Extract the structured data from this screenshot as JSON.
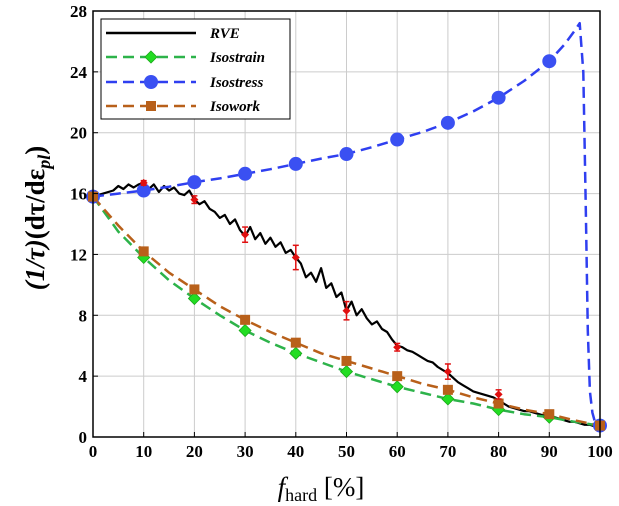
{
  "chart_data": {
    "type": "line",
    "xlabel_main": "f",
    "xlabel_sub": "hard",
    "xlabel_unit": " [%]",
    "ylabel_a": "(1/τ)",
    "ylabel_b": "(dτ/dε",
    "ylabel_sub": "pl",
    "ylabel_c": ")",
    "xlim": [
      0,
      100
    ],
    "ylim": [
      0,
      28
    ],
    "xticks": [
      0,
      10,
      20,
      30,
      40,
      50,
      60,
      70,
      80,
      90,
      100
    ],
    "yticks": [
      0,
      4,
      8,
      12,
      16,
      20,
      24,
      28
    ],
    "grid": true,
    "legend_position": "top-left",
    "series": [
      {
        "name": "RVE",
        "color": "#000000",
        "style": "solid",
        "marker": "none",
        "x": [
          0,
          2,
          4,
          5,
          6,
          7,
          8,
          9,
          10,
          11,
          12,
          13,
          14,
          15,
          16,
          17,
          18,
          19,
          20,
          21,
          22,
          23,
          24,
          25,
          26,
          27,
          28,
          29,
          30,
          31,
          32,
          33,
          34,
          35,
          36,
          37,
          38,
          39,
          40,
          41,
          42,
          43,
          44,
          45,
          46,
          47,
          48,
          49,
          50,
          51,
          52,
          53,
          54,
          55,
          56,
          57,
          58,
          59,
          60,
          61,
          62,
          63,
          64,
          65,
          66,
          67,
          68,
          69,
          70,
          71,
          72,
          73,
          74,
          75,
          76,
          77,
          78,
          79,
          80,
          81,
          82,
          83,
          84,
          85,
          86,
          87,
          88,
          89,
          90,
          91,
          92,
          93,
          94,
          95,
          96,
          97,
          98,
          99,
          100
        ],
        "y": [
          15.8,
          16.0,
          16.2,
          16.5,
          16.3,
          16.6,
          16.4,
          16.6,
          16.7,
          16.3,
          16.6,
          16.1,
          16.5,
          16.2,
          16.4,
          16.0,
          15.9,
          16.2,
          15.6,
          15.3,
          15.5,
          15.0,
          14.8,
          14.4,
          14.6,
          14.0,
          14.3,
          13.6,
          13.2,
          13.8,
          13.0,
          13.4,
          12.7,
          13.1,
          12.5,
          12.8,
          12.1,
          12.3,
          11.8,
          11.4,
          10.5,
          10.8,
          10.2,
          11.1,
          9.8,
          10.1,
          9.2,
          9.5,
          8.3,
          8.9,
          8.0,
          8.4,
          7.8,
          7.4,
          7.6,
          7.1,
          6.9,
          6.4,
          6.0,
          5.9,
          5.7,
          5.6,
          5.4,
          5.2,
          5.0,
          4.9,
          4.6,
          4.4,
          4.2,
          3.9,
          3.6,
          3.4,
          3.2,
          3.0,
          2.9,
          2.8,
          2.7,
          2.6,
          2.4,
          2.2,
          2.0,
          1.9,
          1.8,
          1.7,
          1.7,
          1.6,
          1.5,
          1.4,
          1.4,
          1.3,
          1.2,
          1.1,
          1.0,
          1.0,
          0.9,
          0.8,
          0.8,
          0.7,
          0.7
        ]
      },
      {
        "name": "Isostrain",
        "color": "#2db34a",
        "marker_color": "#22dd22",
        "style": "dashed",
        "marker": "diamond",
        "x": [
          0,
          5,
          10,
          15,
          20,
          25,
          30,
          35,
          40,
          45,
          50,
          55,
          60,
          65,
          70,
          75,
          80,
          85,
          90,
          95,
          100
        ],
        "y": [
          15.8,
          13.5,
          11.8,
          10.3,
          9.1,
          8.0,
          7.0,
          6.2,
          5.5,
          4.9,
          4.3,
          3.8,
          3.3,
          2.9,
          2.5,
          2.2,
          1.8,
          1.5,
          1.3,
          1.0,
          0.75
        ],
        "marker_x": [
          0,
          10,
          20,
          30,
          40,
          50,
          60,
          70,
          80,
          90,
          100
        ],
        "marker_y": [
          15.8,
          11.8,
          9.1,
          7.0,
          5.5,
          4.3,
          3.3,
          2.5,
          1.8,
          1.3,
          0.75
        ]
      },
      {
        "name": "Isostress",
        "color": "#2f3ff0",
        "marker_color": "#3a50f2",
        "style": "dashed",
        "marker": "circle",
        "x": [
          0,
          5,
          10,
          15,
          20,
          25,
          30,
          35,
          40,
          45,
          50,
          55,
          60,
          65,
          70,
          75,
          80,
          85,
          90,
          93,
          95,
          96,
          96.7,
          97.2,
          97.6,
          98,
          98.5,
          99,
          100
        ],
        "y": [
          15.8,
          16.0,
          16.2,
          16.45,
          16.75,
          17.0,
          17.3,
          17.6,
          17.95,
          18.3,
          18.6,
          19.05,
          19.55,
          20.05,
          20.65,
          21.4,
          22.3,
          23.4,
          24.7,
          25.8,
          26.7,
          27.2,
          24.0,
          15.0,
          7.0,
          3.0,
          1.6,
          1.0,
          0.75
        ],
        "marker_x": [
          0,
          10,
          20,
          30,
          40,
          50,
          60,
          70,
          80,
          90,
          100
        ],
        "marker_y": [
          15.8,
          16.2,
          16.75,
          17.3,
          17.95,
          18.6,
          19.55,
          20.65,
          22.3,
          24.7,
          0.75
        ]
      },
      {
        "name": "Isowork",
        "color": "#b8601a",
        "marker_color": "#b8601a",
        "style": "dashed",
        "marker": "square",
        "x": [
          0,
          5,
          10,
          15,
          20,
          25,
          30,
          35,
          40,
          45,
          50,
          55,
          60,
          65,
          70,
          75,
          80,
          85,
          90,
          95,
          100
        ],
        "y": [
          15.8,
          13.9,
          12.2,
          10.8,
          9.7,
          8.6,
          7.7,
          6.9,
          6.2,
          5.5,
          5.0,
          4.5,
          4.0,
          3.5,
          3.1,
          2.6,
          2.2,
          1.8,
          1.5,
          1.1,
          0.75
        ],
        "marker_x": [
          0,
          10,
          20,
          30,
          40,
          50,
          60,
          70,
          80,
          90,
          100
        ],
        "marker_y": [
          15.8,
          12.2,
          9.7,
          7.7,
          6.2,
          5.0,
          4.0,
          3.1,
          2.2,
          1.5,
          0.75
        ]
      }
    ],
    "error_bars": {
      "color": "#e01010",
      "x": [
        10,
        20,
        30,
        40,
        50,
        60,
        70,
        80
      ],
      "y": [
        16.7,
        15.6,
        13.3,
        11.8,
        8.3,
        5.9,
        4.3,
        2.8
      ],
      "err": [
        0.15,
        0.25,
        0.5,
        0.8,
        0.6,
        0.25,
        0.5,
        0.3
      ]
    }
  }
}
